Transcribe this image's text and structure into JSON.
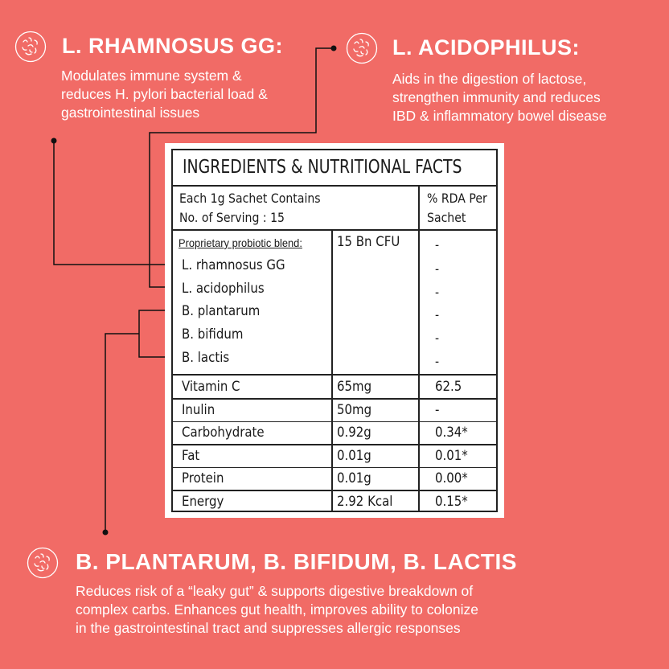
{
  "callouts": [
    {
      "title": "L. RHAMNOSUS GG:",
      "text": [
        "Modulates immune system &",
        "reduces H. pylori bacterial load &",
        "gastrointestinal issues"
      ],
      "icon": "bacteria-icon"
    },
    {
      "title": "L. ACIDOPHILUS:",
      "text": [
        "Aids in the digestion of lactose,",
        "strengthen immunity and reduces",
        "IBD & inflammatory bowel disease"
      ],
      "icon": "bacteria-icon"
    },
    {
      "title": "B. PLANTARUM, B. BIFIDUM, B. LACTIS",
      "text": [
        "Reduces risk of a “leaky gut” & supports digestive breakdown of",
        "complex carbs. Enhances gut health, improves ability to colonize",
        "in the gastrointestinal tract and suppresses allergic responses"
      ],
      "icon": "bacteria-icon"
    }
  ],
  "table": {
    "title": "INGREDIENTS & NUTRITIONAL FACTS",
    "header_left": [
      "Each 1g Sachet Contains",
      "No. of Serving : 15"
    ],
    "header_right": [
      "% RDA Per",
      "Sachet"
    ],
    "blend_label": "Proprietary probiotic blend:",
    "blend_amount": "15 Bn CFU",
    "blend_rda": "-",
    "strains": [
      {
        "name": "L. rhamnosus GG",
        "rda": "-"
      },
      {
        "name": "L. acidophilus",
        "rda": "-"
      },
      {
        "name": "B. plantarum",
        "rda": "-"
      },
      {
        "name": "B. bifidum",
        "rda": "-"
      },
      {
        "name": "B. lactis",
        "rda": "-"
      }
    ],
    "rows": [
      {
        "name": "Vitamin C",
        "amount": "65mg",
        "rda": "62.5"
      },
      {
        "name": "Inulin",
        "amount": "50mg",
        "rda": "-"
      },
      {
        "name": "Carbohydrate",
        "amount": "0.92g",
        "rda": "0.34*"
      },
      {
        "name": "Fat",
        "amount": "0.01g",
        "rda": "0.01*"
      },
      {
        "name": "Protein",
        "amount": "0.01g",
        "rda": "0.00*"
      },
      {
        "name": "Energy",
        "amount": "2.92 Kcal",
        "rda": "0.15*"
      }
    ]
  },
  "colors": {
    "background": "#F16B66",
    "text": "#FFFFFF",
    "lines": "#111111"
  }
}
